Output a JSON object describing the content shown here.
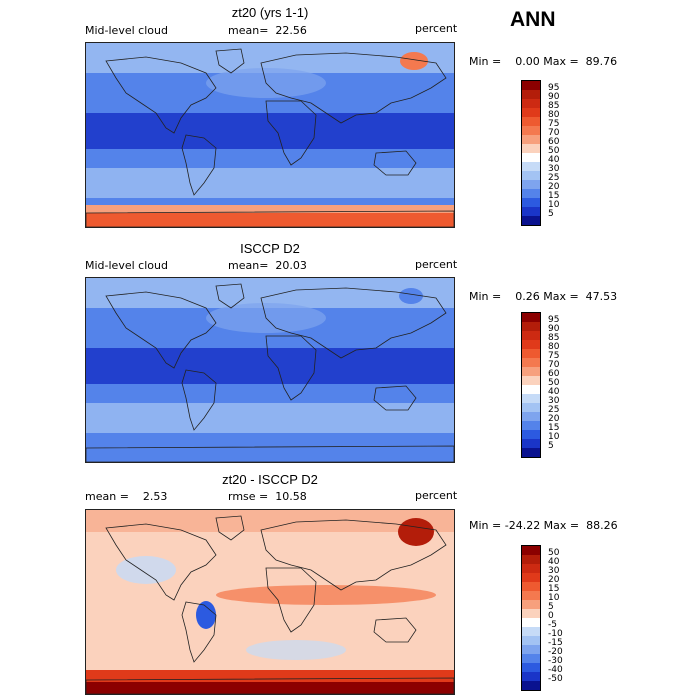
{
  "season_label": "ANN",
  "panels": [
    {
      "title": "zt20 (yrs 1-1)",
      "left_label": "Mid-level cloud",
      "stat1": "mean=  22.56",
      "stat2": "",
      "units": "percent",
      "minmax": "Min =    0.00 Max =  89.76",
      "levels": [
        "95",
        "90",
        "85",
        "80",
        "75",
        "70",
        "60",
        "50",
        "40",
        "30",
        "25",
        "20",
        "15",
        "10",
        "5"
      ],
      "colors": [
        "#8b0000",
        "#b31d0a",
        "#cd2a12",
        "#e03a1a",
        "#ee5a30",
        "#f4794f",
        "#f7a07d",
        "#fbd2bd",
        "#ffffff",
        "#c6dbf7",
        "#a3c3f3",
        "#7ea4ee",
        "#5483ea",
        "#2c5ae0",
        "#1a35c8",
        "#0a128f"
      ],
      "map_style": "model"
    },
    {
      "title": "ISCCP D2",
      "left_label": "Mid-level cloud",
      "stat1": "mean=  20.03",
      "stat2": "",
      "units": "percent",
      "minmax": "Min =    0.26 Max =  47.53",
      "levels": [
        "95",
        "90",
        "85",
        "80",
        "75",
        "70",
        "60",
        "50",
        "40",
        "30",
        "25",
        "20",
        "15",
        "10",
        "5"
      ],
      "colors": [
        "#8b0000",
        "#b31d0a",
        "#cd2a12",
        "#e03a1a",
        "#ee5a30",
        "#f4794f",
        "#f7a07d",
        "#fbd2bd",
        "#ffffff",
        "#c6dbf7",
        "#a3c3f3",
        "#7ea4ee",
        "#5483ea",
        "#2c5ae0",
        "#1a35c8",
        "#0a128f"
      ],
      "map_style": "obs"
    },
    {
      "title": "zt20 - ISCCP D2",
      "left_label": "mean =    2.53",
      "stat1": "rmse =  10.58",
      "stat2": "",
      "units": "percent",
      "minmax": "Min = -24.22 Max =  88.26",
      "levels": [
        "50",
        "40",
        "30",
        "20",
        "15",
        "10",
        "5",
        "0",
        "-5",
        "-10",
        "-15",
        "-20",
        "-30",
        "-40",
        "-50"
      ],
      "colors": [
        "#8b0000",
        "#b31d0a",
        "#cd2a12",
        "#e03a1a",
        "#ee5a30",
        "#f4794f",
        "#f7a07d",
        "#fbd2bd",
        "#ffffff",
        "#c6dbf7",
        "#a3c3f3",
        "#7ea4ee",
        "#5483ea",
        "#2c5ae0",
        "#1a35c8",
        "#0a128f"
      ],
      "map_style": "diff"
    }
  ]
}
